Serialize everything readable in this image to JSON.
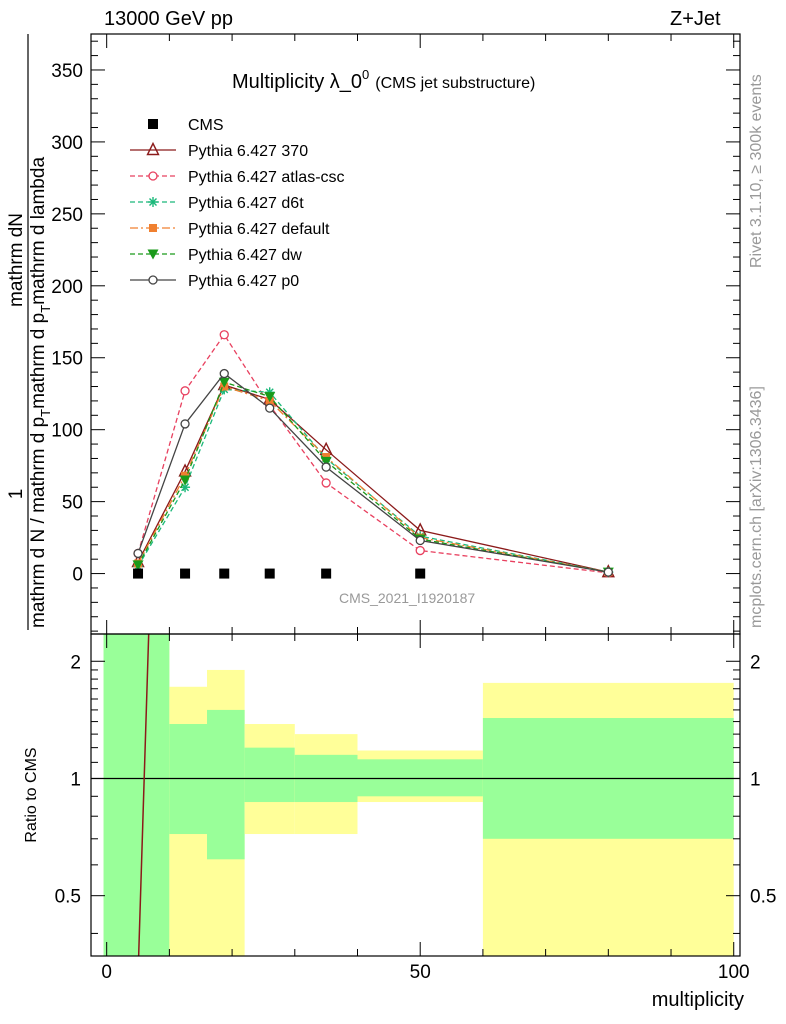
{
  "header": {
    "left": "13000 GeV pp",
    "right": "Z+Jet"
  },
  "side": {
    "rivet": "Rivet 3.1.10, ≥ 300k events",
    "mcplots": "mcplots.cern.ch [arXiv:1306.3436]"
  },
  "chart_data": [
    {
      "type": "line",
      "title_main": "Multiplicity λ_0",
      "title_sup": "0",
      "title_sub": "(CMS jet substructure)",
      "watermark": "CMS_2021_I1920187",
      "ylabel_top": "1",
      "ylabel_num": "mathrm dN",
      "ylabel_den": "mathrm d N / mathrm d p",
      "ylabel_den_sub": "T",
      "ylabel_den_rest": "mathrm d p",
      "ylabel_den_sub2": "T",
      "ylabel_den_tail": "mathrm d lambda",
      "xlim": [
        -2.5,
        101
      ],
      "ylim": [
        -42,
        375
      ],
      "yticks": [
        0,
        50,
        100,
        150,
        200,
        250,
        300,
        350
      ],
      "series": [
        {
          "name": "CMS",
          "marker": "square",
          "color": "#000000",
          "dash": "",
          "x": [
            5,
            12.5,
            18.75,
            26,
            35,
            50
          ],
          "y": [
            0,
            0,
            0,
            0,
            0,
            0
          ]
        },
        {
          "name": "Pythia 6.427 370",
          "marker": "triangle",
          "color": "#8b1a1a",
          "dash": "",
          "x": [
            5,
            12.5,
            18.75,
            26,
            35,
            50,
            80
          ],
          "y": [
            8,
            71,
            131,
            121,
            86,
            30,
            1
          ]
        },
        {
          "name": "Pythia 6.427 atlas-csc",
          "marker": "circle",
          "color": "#e8405f",
          "dash": "5,3",
          "x": [
            5,
            12.5,
            18.75,
            26,
            35,
            50,
            80
          ],
          "y": [
            14,
            127,
            166,
            117,
            63,
            16,
            0.5
          ]
        },
        {
          "name": "Pythia 6.427 d6t",
          "marker": "star",
          "color": "#1ab87a",
          "dash": "5,3",
          "x": [
            5,
            12.5,
            18.75,
            26,
            35,
            50,
            80
          ],
          "y": [
            5,
            60,
            128,
            126,
            80,
            26,
            1
          ]
        },
        {
          "name": "Pythia 6.427 default",
          "marker": "filled-square",
          "color": "#f08030",
          "dash": "8,3,2,3",
          "x": [
            5,
            12.5,
            18.75,
            26,
            35,
            50,
            80
          ],
          "y": [
            7,
            68,
            130,
            120,
            81,
            25,
            1
          ]
        },
        {
          "name": "Pythia 6.427 dw",
          "marker": "down-triangle",
          "color": "#1a9a1a",
          "dash": "5,3",
          "x": [
            5,
            12.5,
            18.75,
            26,
            35,
            50,
            80
          ],
          "y": [
            6,
            65,
            133,
            123,
            78,
            24,
            1
          ]
        },
        {
          "name": "Pythia 6.427 p0",
          "marker": "open-circle",
          "color": "#444444",
          "dash": "",
          "x": [
            5,
            12.5,
            18.75,
            26,
            35,
            50,
            80
          ],
          "y": [
            14,
            104,
            139,
            115,
            74,
            23,
            1
          ]
        }
      ]
    },
    {
      "type": "area",
      "ylabel": "Ratio to CMS",
      "xlabel": "multiplicity",
      "xlim": [
        -2.5,
        101
      ],
      "ylim": [
        0.35,
        2.35
      ],
      "log_scale": true,
      "yticks": [
        0.5,
        1,
        2
      ],
      "xticks": [
        0,
        50,
        100
      ],
      "bands": [
        {
          "x": [
            -0.5,
            10
          ],
          "green": [
            0.35,
            2.35
          ],
          "yellow": [
            0.35,
            2.35
          ]
        },
        {
          "x": [
            10,
            16
          ],
          "green": [
            0.72,
            1.38
          ],
          "yellow": [
            0.35,
            1.72
          ]
        },
        {
          "x": [
            16,
            22
          ],
          "green": [
            0.62,
            1.5
          ],
          "yellow": [
            0.35,
            1.9
          ]
        },
        {
          "x": [
            22,
            30
          ],
          "green": [
            0.87,
            1.2
          ],
          "yellow": [
            0.72,
            1.38
          ]
        },
        {
          "x": [
            30,
            40
          ],
          "green": [
            0.87,
            1.15
          ],
          "yellow": [
            0.72,
            1.3
          ]
        },
        {
          "x": [
            40,
            60
          ],
          "green": [
            0.9,
            1.12
          ],
          "yellow": [
            0.87,
            1.18
          ]
        },
        {
          "x": [
            60,
            100
          ],
          "green": [
            0.7,
            1.43
          ],
          "yellow": [
            0.35,
            1.76
          ]
        }
      ],
      "ratio_line": {
        "x": [
          5.1,
          6.7
        ],
        "y": [
          0.35,
          2.35
        ]
      }
    }
  ]
}
